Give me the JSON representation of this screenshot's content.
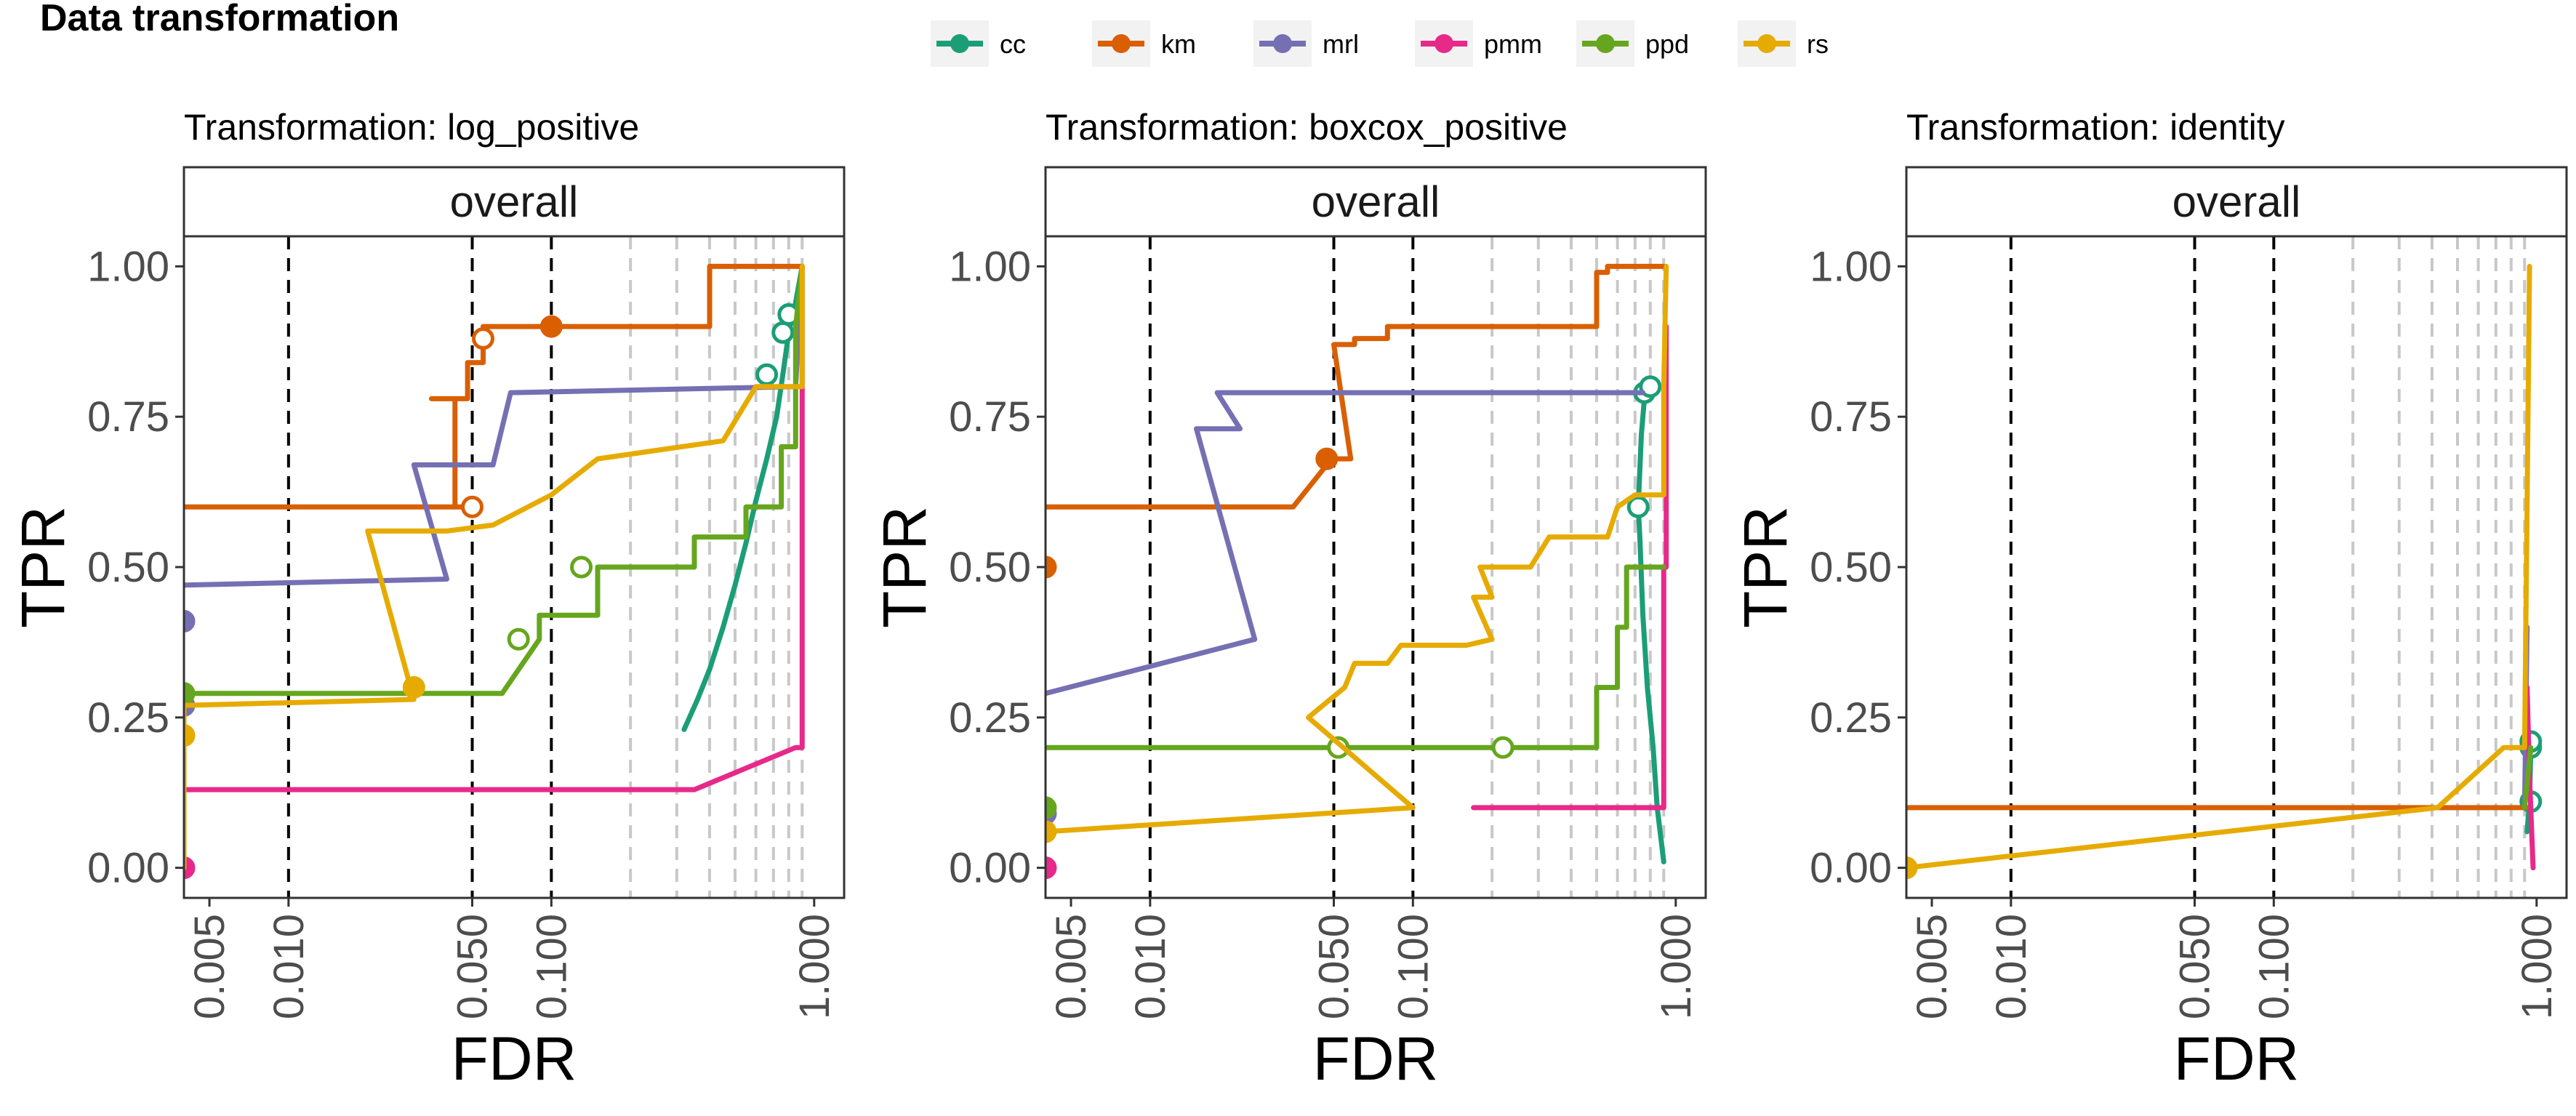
{
  "title": "Data transformation",
  "legend": [
    {
      "name": "cc",
      "color": "#1B9E77"
    },
    {
      "name": "km",
      "color": "#D95F02"
    },
    {
      "name": "mrl",
      "color": "#7570B3"
    },
    {
      "name": "pmm",
      "color": "#E7298A"
    },
    {
      "name": "ppd",
      "color": "#66A61E"
    },
    {
      "name": "rs",
      "color": "#E6AB02"
    }
  ],
  "chart_data": [
    {
      "type": "line",
      "title": "Transformation: log_positive",
      "facet": "overall",
      "xlabel": "FDR",
      "ylabel": "TPR",
      "x_scale": "log10",
      "xlim": [
        0.004,
        1.3
      ],
      "ylim": [
        -0.05,
        1.05
      ],
      "x_ticks": [
        "0.005",
        "0.010",
        "0.050",
        "0.100",
        "1.000"
      ],
      "y_ticks": [
        "0.00",
        "0.25",
        "0.50",
        "0.75",
        "1.00"
      ],
      "threshold_lines_black": [
        0.01,
        0.05,
        0.1
      ],
      "threshold_lines_gray": [
        0.2,
        0.3,
        0.4,
        0.5,
        0.6,
        0.7,
        0.8,
        0.9
      ],
      "series": [
        {
          "name": "cc",
          "x": [
            0.32,
            0.36,
            0.4,
            0.45,
            0.5,
            0.55,
            0.6,
            0.66,
            0.72,
            0.76,
            0.8,
            0.85,
            0.9
          ],
          "y": [
            0.23,
            0.28,
            0.33,
            0.4,
            0.47,
            0.54,
            0.61,
            0.68,
            0.75,
            0.82,
            0.89,
            0.94,
            1.0
          ],
          "points": [
            {
              "x": 0.66,
              "y": 0.82,
              "filled": false
            },
            {
              "x": 0.76,
              "y": 0.89,
              "filled": false
            },
            {
              "x": 0.8,
              "y": 0.92,
              "filled": false
            }
          ]
        },
        {
          "name": "km",
          "x": [
            0.004,
            0.05,
            0.05,
            0.043,
            0.043,
            0.035,
            0.035,
            0.048,
            0.048,
            0.055,
            0.055,
            0.1,
            0.1,
            0.4,
            0.4,
            0.9,
            0.9
          ],
          "y": [
            0.6,
            0.6,
            0.6,
            0.6,
            0.78,
            0.78,
            0.78,
            0.78,
            0.84,
            0.84,
            0.9,
            0.9,
            0.9,
            0.9,
            1.0,
            1.0,
            1.0
          ],
          "points": [
            {
              "x": 0.05,
              "y": 0.6,
              "filled": false
            },
            {
              "x": 0.055,
              "y": 0.88,
              "filled": false
            },
            {
              "x": 0.1,
              "y": 0.9,
              "filled": true
            }
          ]
        },
        {
          "name": "mrl",
          "x": [
            0.004,
            0.04,
            0.04,
            0.03,
            0.03,
            0.06,
            0.06,
            0.07,
            0.07,
            0.85,
            0.85,
            0.9
          ],
          "y": [
            0.47,
            0.48,
            0.48,
            0.67,
            0.67,
            0.67,
            0.67,
            0.79,
            0.79,
            0.8,
            0.8,
            1.0
          ],
          "points": [
            {
              "x": 0.004,
              "y": 0.41,
              "filled": true
            },
            {
              "x": 0.004,
              "y": 0.27,
              "filled": true
            }
          ]
        },
        {
          "name": "pmm",
          "x": [
            0.004,
            0.35,
            0.85,
            0.9,
            0.9
          ],
          "y": [
            0.13,
            0.13,
            0.2,
            0.2,
            1.0
          ],
          "points": [
            {
              "x": 0.004,
              "y": 0.0,
              "filled": true
            }
          ]
        },
        {
          "name": "ppd",
          "x": [
            0.004,
            0.065,
            0.065,
            0.09,
            0.09,
            0.15,
            0.15,
            0.35,
            0.35,
            0.55,
            0.55,
            0.75,
            0.75,
            0.85,
            0.85,
            0.9
          ],
          "y": [
            0.29,
            0.29,
            0.29,
            0.38,
            0.42,
            0.42,
            0.5,
            0.5,
            0.55,
            0.55,
            0.6,
            0.6,
            0.7,
            0.7,
            0.9,
            1.0
          ],
          "points": [
            {
              "x": 0.004,
              "y": 0.29,
              "filled": true
            },
            {
              "x": 0.075,
              "y": 0.38,
              "filled": false
            },
            {
              "x": 0.13,
              "y": 0.5,
              "filled": false
            }
          ]
        },
        {
          "name": "rs",
          "x": [
            0.004,
            0.004,
            0.03,
            0.03,
            0.02,
            0.04,
            0.04,
            0.06,
            0.06,
            0.1,
            0.1,
            0.15,
            0.15,
            0.45,
            0.45,
            0.6,
            0.6,
            0.9,
            0.9
          ],
          "y": [
            0.0,
            0.27,
            0.28,
            0.28,
            0.56,
            0.56,
            0.56,
            0.57,
            0.57,
            0.62,
            0.62,
            0.68,
            0.68,
            0.71,
            0.71,
            0.8,
            0.8,
            0.8,
            1.0
          ],
          "points": [
            {
              "x": 0.004,
              "y": 0.22,
              "filled": true
            },
            {
              "x": 0.03,
              "y": 0.3,
              "filled": true
            }
          ]
        }
      ]
    },
    {
      "type": "line",
      "title": "Transformation: boxcox_positive",
      "facet": "overall",
      "xlabel": "FDR",
      "ylabel": "TPR",
      "x_scale": "log10",
      "xlim": [
        0.004,
        1.3
      ],
      "ylim": [
        -0.05,
        1.05
      ],
      "x_ticks": [
        "0.005",
        "0.010",
        "0.050",
        "0.100",
        "1.000"
      ],
      "y_ticks": [
        "0.00",
        "0.25",
        "0.50",
        "0.75",
        "1.00"
      ],
      "threshold_lines_black": [
        0.01,
        0.05,
        0.1
      ],
      "threshold_lines_gray": [
        0.2,
        0.3,
        0.4,
        0.5,
        0.6,
        0.7,
        0.8,
        0.9
      ],
      "series": [
        {
          "name": "cc",
          "x": [
            0.9,
            0.85,
            0.82,
            0.78,
            0.75,
            0.73,
            0.72,
            0.74,
            0.76,
            0.78
          ],
          "y": [
            0.01,
            0.1,
            0.2,
            0.3,
            0.42,
            0.55,
            0.6,
            0.72,
            0.78,
            0.8
          ],
          "points": [
            {
              "x": 0.72,
              "y": 0.6,
              "filled": false
            },
            {
              "x": 0.76,
              "y": 0.79,
              "filled": false
            },
            {
              "x": 0.8,
              "y": 0.8,
              "filled": false
            }
          ]
        },
        {
          "name": "km",
          "x": [
            0.004,
            0.035,
            0.035,
            0.047,
            0.047,
            0.058,
            0.058,
            0.05,
            0.05,
            0.06,
            0.06,
            0.08,
            0.08,
            0.5,
            0.5,
            0.55,
            0.55,
            0.9
          ],
          "y": [
            0.6,
            0.6,
            0.6,
            0.67,
            0.68,
            0.68,
            0.68,
            0.87,
            0.87,
            0.87,
            0.88,
            0.88,
            0.9,
            0.9,
            0.99,
            0.99,
            1.0,
            1.0
          ],
          "points": [
            {
              "x": 0.047,
              "y": 0.68,
              "filled": true
            },
            {
              "x": 0.004,
              "y": 0.5,
              "filled": true
            }
          ]
        },
        {
          "name": "mrl",
          "x": [
            0.004,
            0.025,
            0.015,
            0.022,
            0.022,
            0.018,
            0.018,
            0.75
          ],
          "y": [
            0.29,
            0.38,
            0.73,
            0.73,
            0.73,
            0.79,
            0.79,
            0.79
          ],
          "points": [
            {
              "x": 0.004,
              "y": 0.09,
              "filled": true
            }
          ]
        },
        {
          "name": "pmm",
          "x": [
            0.17,
            0.9,
            0.9,
            0.92,
            0.92
          ],
          "y": [
            0.1,
            0.1,
            0.5,
            0.5,
            0.9
          ],
          "points": [
            {
              "x": 0.004,
              "y": 0.0,
              "filled": true
            }
          ]
        },
        {
          "name": "ppd",
          "x": [
            0.004,
            0.5,
            0.5,
            0.6,
            0.6,
            0.65,
            0.65,
            0.9
          ],
          "y": [
            0.2,
            0.2,
            0.3,
            0.3,
            0.4,
            0.4,
            0.5,
            0.5
          ],
          "points": [
            {
              "x": 0.004,
              "y": 0.1,
              "filled": true
            },
            {
              "x": 0.052,
              "y": 0.2,
              "filled": false
            },
            {
              "x": 0.22,
              "y": 0.2,
              "filled": false
            }
          ]
        },
        {
          "name": "rs",
          "x": [
            0.004,
            0.1,
            0.04,
            0.055,
            0.06,
            0.08,
            0.09,
            0.16,
            0.2,
            0.17,
            0.2,
            0.18,
            0.28,
            0.33,
            0.55,
            0.6,
            0.7,
            0.9,
            0.9,
            0.92
          ],
          "y": [
            0.06,
            0.1,
            0.25,
            0.3,
            0.34,
            0.34,
            0.37,
            0.37,
            0.38,
            0.45,
            0.45,
            0.5,
            0.5,
            0.55,
            0.55,
            0.6,
            0.62,
            0.62,
            0.8,
            1.0
          ],
          "points": [
            {
              "x": 0.004,
              "y": 0.06,
              "filled": true
            }
          ]
        }
      ]
    },
    {
      "type": "line",
      "title": "Transformation: identity",
      "facet": "overall",
      "xlabel": "FDR",
      "ylabel": "TPR",
      "x_scale": "log10",
      "xlim": [
        0.004,
        1.3
      ],
      "ylim": [
        -0.05,
        1.05
      ],
      "x_ticks": [
        "0.005",
        "0.010",
        "0.050",
        "0.100",
        "1.000"
      ],
      "y_ticks": [
        "0.00",
        "0.25",
        "0.50",
        "0.75",
        "1.00"
      ],
      "threshold_lines_black": [
        0.01,
        0.05,
        0.1
      ],
      "threshold_lines_gray": [
        0.2,
        0.3,
        0.4,
        0.5,
        0.6,
        0.7,
        0.8,
        0.9
      ],
      "series": [
        {
          "name": "cc",
          "x": [
            0.92,
            0.94,
            0.95,
            0.95
          ],
          "y": [
            0.06,
            0.11,
            0.2,
            0.21
          ],
          "points": [
            {
              "x": 0.95,
              "y": 0.11,
              "filled": false
            },
            {
              "x": 0.95,
              "y": 0.2,
              "filled": false
            },
            {
              "x": 0.95,
              "y": 0.21,
              "filled": false
            }
          ]
        },
        {
          "name": "km",
          "x": [
            0.004,
            0.95
          ],
          "y": [
            0.1,
            0.1
          ],
          "points": []
        },
        {
          "name": "mrl",
          "x": [
            0.9,
            0.92
          ],
          "y": [
            0.1,
            0.4
          ],
          "points": []
        },
        {
          "name": "pmm",
          "x": [
            0.97,
            0.94,
            0.92
          ],
          "y": [
            0.0,
            0.15,
            0.3
          ],
          "points": []
        },
        {
          "name": "ppd",
          "x": [
            0.9,
            0.95
          ],
          "y": [
            0.1,
            0.2
          ],
          "points": []
        },
        {
          "name": "rs",
          "x": [
            0.004,
            0.42,
            0.75,
            0.9,
            0.92,
            0.94
          ],
          "y": [
            0.0,
            0.1,
            0.2,
            0.2,
            0.6,
            1.0
          ],
          "points": [
            {
              "x": 0.004,
              "y": 0.0,
              "filled": true
            }
          ]
        }
      ]
    }
  ]
}
